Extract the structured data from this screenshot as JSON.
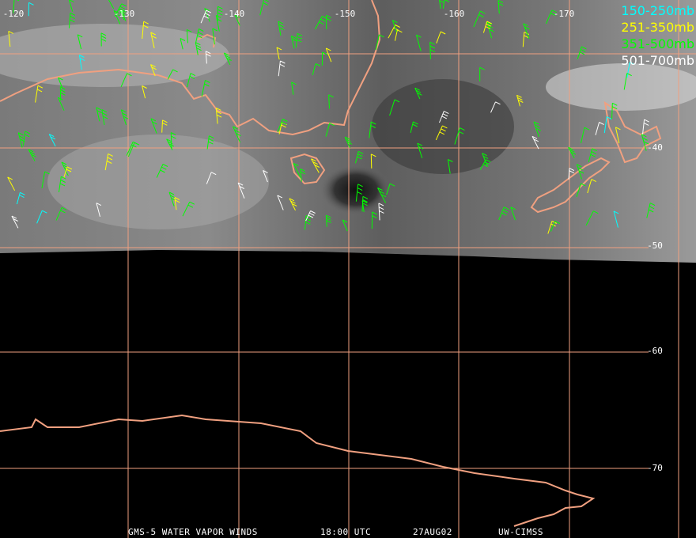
{
  "longitude_labels": [
    "-120",
    "-130",
    "-140",
    "-150",
    "-160",
    "-170"
  ],
  "latitude_labels": [
    "-40",
    "-50",
    "-60",
    "-70"
  ],
  "legend": [
    "150-250mb",
    "251-350mb",
    "351-500mb",
    "501-700mb"
  ],
  "footer": [
    "GMS-5 WATER VAPOR WINDS",
    "18:00 UTC",
    "27AUG02",
    "UW-CIMSS"
  ]
}
